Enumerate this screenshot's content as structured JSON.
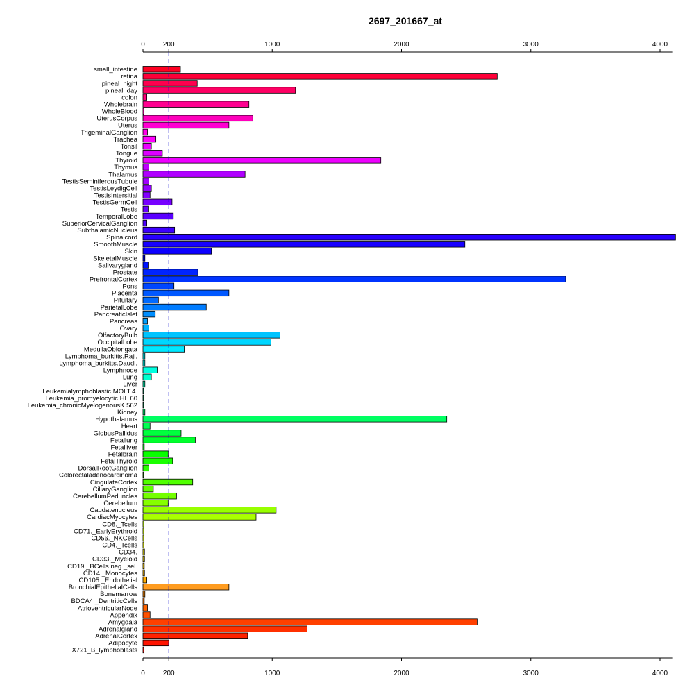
{
  "chart_data": {
    "type": "bar",
    "orientation": "horizontal",
    "title": "2697_201667_at",
    "xlabel": "",
    "ylabel": "",
    "xlim": [
      0,
      4100
    ],
    "xticks": [
      0,
      200,
      1000,
      2000,
      3000,
      4000
    ],
    "reference_line": 200,
    "grid": false,
    "categories": [
      "small_intestine",
      "retina",
      "pineal_night",
      "pineal_day",
      "colon",
      "Wholebrain",
      "WholeBlood",
      "UterusCorpus",
      "Uterus",
      "TrigeminalGanglion",
      "Trachea",
      "Tonsil",
      "Tongue",
      "Thyroid",
      "Thymus",
      "Thalamus",
      "TestisSeminiferousTubule",
      "TestisLeydigCell",
      "TestisIntersitial",
      "TestisGermCell",
      "Testis",
      "TemporalLobe",
      "SuperiorCervicalGanglion",
      "SubthalamicNucleus",
      "Spinalcord",
      "SmoothMuscle",
      "Skin",
      "SkeletalMuscle",
      "Salivarygland",
      "Prostate",
      "PrefrontalCortex",
      "Pons",
      "Placenta",
      "Pituitary",
      "ParietalLobe",
      "PancreaticIslet",
      "Pancreas",
      "Ovary",
      "OlfactoryBulb",
      "OccipitalLobe",
      "MedullaOblongata",
      "Lymphoma_burkitts.Raji.",
      "Lymphoma_burkitts.Daudi.",
      "Lymphnode",
      "Lung",
      "Liver",
      "Leukemialymphoblastic.MOLT.4.",
      "Leukemia_promyelocytic.HL.60",
      "Leukemia_chronicMyelogenousK.562",
      "Kidney",
      "Hypothalamus",
      "Heart",
      "GlobusPallidus",
      "Fetallung",
      "Fetalliver",
      "Fetalbrain",
      "FetalThyroid",
      "DorsalRootGanglion",
      "Colorectaladenocarcinoma",
      "CingulateCortex",
      "CiliaryGanglion",
      "CerebellumPeduncles",
      "Cerebellum",
      "Caudatenucleus",
      "CardiacMyocytes",
      "CD8._Tcells",
      "CD71._EarlyErythroid",
      "CD56._NKCells",
      "CD4._Tcells",
      "CD34.",
      "CD33._Myeloid",
      "CD19._BCells.neg._sel.",
      "CD14._Monocytes",
      "CD105._Endothelial",
      "BronchialEpithelialCells",
      "Bonemarrow",
      "BDCA4._DentriticCells",
      "AtrioventricularNode",
      "Appendix",
      "Amygdala",
      "Adrenalgland",
      "AdrenalCortex",
      "Adipocyte",
      "X721_B_lymphoblasts"
    ],
    "values": [
      290,
      2740,
      420,
      1180,
      30,
      820,
      8,
      850,
      665,
      35,
      100,
      65,
      150,
      1840,
      45,
      790,
      45,
      65,
      55,
      225,
      40,
      235,
      30,
      245,
      4120,
      2490,
      530,
      15,
      40,
      425,
      3270,
      240,
      665,
      120,
      490,
      95,
      35,
      45,
      1060,
      990,
      320,
      15,
      15,
      110,
      65,
      15,
      5,
      5,
      5,
      15,
      2350,
      55,
      295,
      405,
      10,
      195,
      230,
      45,
      5,
      385,
      80,
      260,
      195,
      1030,
      875,
      8,
      8,
      8,
      8,
      12,
      12,
      10,
      12,
      30,
      665,
      15,
      10,
      35,
      55,
      2590,
      1270,
      810,
      200,
      8
    ],
    "colors": [
      "#ff0022",
      "#ff0038",
      "#ff004e",
      "#ff0064",
      "#ff007a",
      "#ff0090",
      "#ff00a6",
      "#ff00bc",
      "#ff00d2",
      "#ff00e8",
      "#ff00fe",
      "#ec00ff",
      "#dc00ff",
      "#ee00ff",
      "#bf00ff",
      "#b000ff",
      "#a100ff",
      "#9300ff",
      "#8400ff",
      "#7600ff",
      "#6800ff",
      "#5a00ff",
      "#4c00ff",
      "#3e00ff",
      "#2800ff",
      "#1800ff",
      "#0c00ff",
      "#0004ff",
      "#0014ff",
      "#0024ff",
      "#0034ff",
      "#0046ff",
      "#0058ff",
      "#006aff",
      "#007cff",
      "#008eff",
      "#00a0ff",
      "#00b2ff",
      "#00c4ff",
      "#00d6ff",
      "#00e8ff",
      "#00faff",
      "#00fff2",
      "#00ffe0",
      "#00ffce",
      "#00ffbc",
      "#00ffaa",
      "#00ff98",
      "#00ff86",
      "#00ff74",
      "#00ff62",
      "#00ff50",
      "#00ff3e",
      "#00ff2c",
      "#00ff1a",
      "#08ff00",
      "#1aff00",
      "#2cff00",
      "#3eff00",
      "#50ff00",
      "#62ff00",
      "#74ff00",
      "#86ff00",
      "#98ff00",
      "#aaff00",
      "#bcff00",
      "#ceff00",
      "#e0ff00",
      "#f2ff00",
      "#fff400",
      "#ffe200",
      "#ffd000",
      "#ffbe00",
      "#ffac00",
      "#ff9c20",
      "#ff8800",
      "#ff7600",
      "#ff6400",
      "#ff5200",
      "#ff4000",
      "#ff3000",
      "#ff2200",
      "#ff1400",
      "#ff0800"
    ]
  }
}
